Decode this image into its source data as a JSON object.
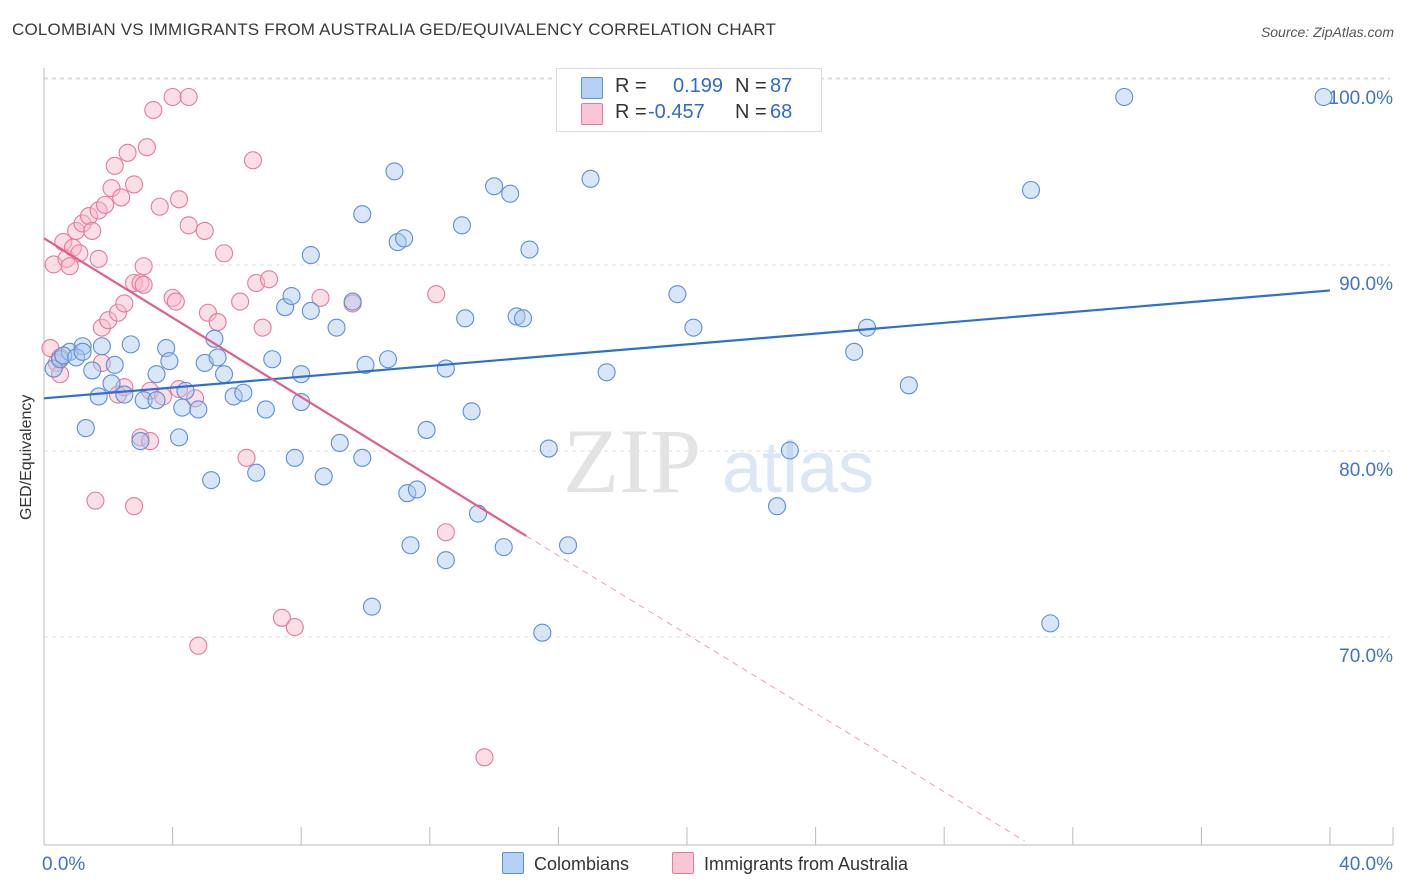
{
  "title": "COLOMBIAN VS IMMIGRANTS FROM AUSTRALIA GED/EQUIVALENCY CORRELATION CHART",
  "source": "Source: ZipAtlas.com",
  "watermark": {
    "zip": "ZIP",
    "atlas": "atlas"
  },
  "legend": {
    "rows": [
      {
        "r_label": "R =",
        "r_value": "0.199",
        "n_label": "N =",
        "n_value": "87"
      },
      {
        "r_label": "R =",
        "r_value": "-0.457",
        "n_label": "N =",
        "n_value": "68"
      }
    ]
  },
  "bottom_legend": {
    "series1": "Colombians",
    "series2": "Immigrants from Australia"
  },
  "colors": {
    "blue_fill": "#a9c8ef",
    "blue_stroke": "#5b8fd6",
    "blue_line": "#2f6fcf",
    "pink_fill": "#f6b7ca",
    "pink_stroke": "#e57a9c",
    "pink_line": "#e0608a",
    "axis_label": "#3e74c6",
    "grid": "#dddddd"
  },
  "chart_data": {
    "type": "scatter",
    "title": "COLOMBIAN VS IMMIGRANTS FROM AUSTRALIA GED/EQUIVALENCY CORRELATION CHART",
    "xlabel": "",
    "ylabel": "GED/Equivalency",
    "xlim": [
      0,
      40
    ],
    "ylim": [
      60,
      102
    ],
    "x_tick_labels": [
      {
        "value": 0,
        "label": "0.0%"
      },
      {
        "value": 40,
        "label": "40.0%"
      }
    ],
    "y_tick_labels": [
      {
        "value": 100,
        "label": "100.0%"
      },
      {
        "value": 90,
        "label": "90.0%"
      },
      {
        "value": 80,
        "label": "80.0%"
      },
      {
        "value": 70,
        "label": "70.0%"
      }
    ],
    "series": [
      {
        "name": "Colombians",
        "color": "blue",
        "trend": {
          "x0": 0,
          "y0": 83.8,
          "x1": 40,
          "y1": 89.6,
          "dashed_from": null
        },
        "points": [
          [
            0.3,
            85.4
          ],
          [
            0.5,
            85.9
          ],
          [
            0.8,
            86.3
          ],
          [
            1.2,
            86.6
          ],
          [
            0.6,
            86.1
          ],
          [
            1.0,
            86.0
          ],
          [
            1.5,
            85.3
          ],
          [
            1.8,
            86.6
          ],
          [
            2.2,
            85.6
          ],
          [
            2.7,
            86.7
          ],
          [
            2.1,
            84.6
          ],
          [
            1.7,
            83.9
          ],
          [
            2.5,
            84.0
          ],
          [
            3.1,
            83.7
          ],
          [
            3.5,
            85.1
          ],
          [
            3.8,
            86.5
          ],
          [
            3.9,
            85.8
          ],
          [
            4.4,
            84.2
          ],
          [
            4.3,
            83.3
          ],
          [
            5.0,
            85.7
          ],
          [
            5.4,
            86.0
          ],
          [
            5.6,
            85.1
          ],
          [
            5.3,
            87.0
          ],
          [
            5.9,
            83.9
          ],
          [
            6.2,
            84.1
          ],
          [
            6.9,
            83.2
          ],
          [
            7.1,
            85.9
          ],
          [
            7.5,
            88.7
          ],
          [
            7.7,
            89.3
          ],
          [
            8.0,
            85.1
          ],
          [
            8.0,
            83.6
          ],
          [
            8.3,
            88.5
          ],
          [
            9.1,
            87.6
          ],
          [
            9.6,
            89.0
          ],
          [
            10.0,
            85.6
          ],
          [
            10.7,
            85.9
          ],
          [
            9.9,
            80.6
          ],
          [
            9.2,
            81.4
          ],
          [
            7.8,
            80.6
          ],
          [
            6.6,
            79.8
          ],
          [
            5.2,
            79.4
          ],
          [
            4.2,
            81.7
          ],
          [
            3.0,
            81.5
          ],
          [
            1.3,
            82.2
          ],
          [
            3.5,
            83.7
          ],
          [
            4.8,
            83.2
          ],
          [
            8.7,
            79.6
          ],
          [
            11.3,
            78.7
          ],
          [
            11.6,
            78.9
          ],
          [
            11.9,
            82.1
          ],
          [
            12.5,
            85.4
          ],
          [
            13.3,
            83.1
          ],
          [
            13.5,
            77.6
          ],
          [
            14.0,
            95.2
          ],
          [
            14.3,
            75.8
          ],
          [
            14.7,
            88.2
          ],
          [
            14.9,
            88.1
          ],
          [
            13.1,
            88.1
          ],
          [
            11.4,
            75.9
          ],
          [
            12.5,
            75.1
          ],
          [
            10.2,
            72.6
          ],
          [
            15.5,
            71.2
          ],
          [
            15.7,
            81.1
          ],
          [
            16.3,
            75.9
          ],
          [
            17.0,
            95.6
          ],
          [
            17.5,
            85.2
          ],
          [
            15.1,
            91.8
          ],
          [
            11.0,
            92.2
          ],
          [
            11.2,
            92.4
          ],
          [
            8.3,
            91.5
          ],
          [
            9.9,
            93.7
          ],
          [
            13.0,
            93.1
          ],
          [
            14.5,
            94.8
          ],
          [
            19.7,
            89.4
          ],
          [
            20.2,
            87.6
          ],
          [
            25.2,
            86.3
          ],
          [
            25.6,
            87.6
          ],
          [
            26.9,
            84.5
          ],
          [
            22.8,
            78.0
          ],
          [
            23.2,
            81.0
          ],
          [
            31.3,
            71.7
          ],
          [
            30.7,
            95.0
          ],
          [
            10.9,
            96.0
          ],
          [
            16.9,
            100.0
          ],
          [
            33.6,
            100.0
          ],
          [
            39.8,
            100.0
          ],
          [
            1.2,
            86.3
          ]
        ]
      },
      {
        "name": "Immigrants from Australia",
        "color": "pink",
        "trend": {
          "x0": 0,
          "y0": 92.4,
          "x1": 15.0,
          "y1": 76.4,
          "dashed_to_x": 30.5,
          "dashed_to_y": 60.0
        },
        "points": [
          [
            0.2,
            86.5
          ],
          [
            0.4,
            85.7
          ],
          [
            0.5,
            85.1
          ],
          [
            0.3,
            91.0
          ],
          [
            0.7,
            91.3
          ],
          [
            0.6,
            92.2
          ],
          [
            0.9,
            91.9
          ],
          [
            1.1,
            91.6
          ],
          [
            1.0,
            92.8
          ],
          [
            1.2,
            93.2
          ],
          [
            0.8,
            90.9
          ],
          [
            1.4,
            93.6
          ],
          [
            1.5,
            92.8
          ],
          [
            1.7,
            93.9
          ],
          [
            1.9,
            94.2
          ],
          [
            2.1,
            95.1
          ],
          [
            2.4,
            94.6
          ],
          [
            2.2,
            96.3
          ],
          [
            2.6,
            97.0
          ],
          [
            3.2,
            97.3
          ],
          [
            3.4,
            99.3
          ],
          [
            4.0,
            100.0
          ],
          [
            4.5,
            100.0
          ],
          [
            2.8,
            95.3
          ],
          [
            3.6,
            94.1
          ],
          [
            4.2,
            94.5
          ],
          [
            4.5,
            93.1
          ],
          [
            5.0,
            92.8
          ],
          [
            5.6,
            91.6
          ],
          [
            6.5,
            96.6
          ],
          [
            1.7,
            91.3
          ],
          [
            1.8,
            87.6
          ],
          [
            2.0,
            88.0
          ],
          [
            2.3,
            88.4
          ],
          [
            2.5,
            88.9
          ],
          [
            2.8,
            90.0
          ],
          [
            3.0,
            90.0
          ],
          [
            3.1,
            89.9
          ],
          [
            4.0,
            89.2
          ],
          [
            4.1,
            89.0
          ],
          [
            5.1,
            88.4
          ],
          [
            6.1,
            89.0
          ],
          [
            6.6,
            90.0
          ],
          [
            6.8,
            87.6
          ],
          [
            7.0,
            90.2
          ],
          [
            8.6,
            89.2
          ],
          [
            9.6,
            88.9
          ],
          [
            12.2,
            89.4
          ],
          [
            2.3,
            84.0
          ],
          [
            2.5,
            84.4
          ],
          [
            3.3,
            84.2
          ],
          [
            3.7,
            83.9
          ],
          [
            4.2,
            84.3
          ],
          [
            4.7,
            83.8
          ],
          [
            3.0,
            81.7
          ],
          [
            3.3,
            81.5
          ],
          [
            6.3,
            80.6
          ],
          [
            1.6,
            78.3
          ],
          [
            2.8,
            78.0
          ],
          [
            12.5,
            76.6
          ],
          [
            7.4,
            72.0
          ],
          [
            7.8,
            71.5
          ],
          [
            4.8,
            70.5
          ],
          [
            13.7,
            64.5
          ],
          [
            1.8,
            85.7
          ],
          [
            5.4,
            87.9
          ],
          [
            3.1,
            90.9
          ],
          [
            0.5,
            86.0
          ]
        ]
      }
    ]
  }
}
